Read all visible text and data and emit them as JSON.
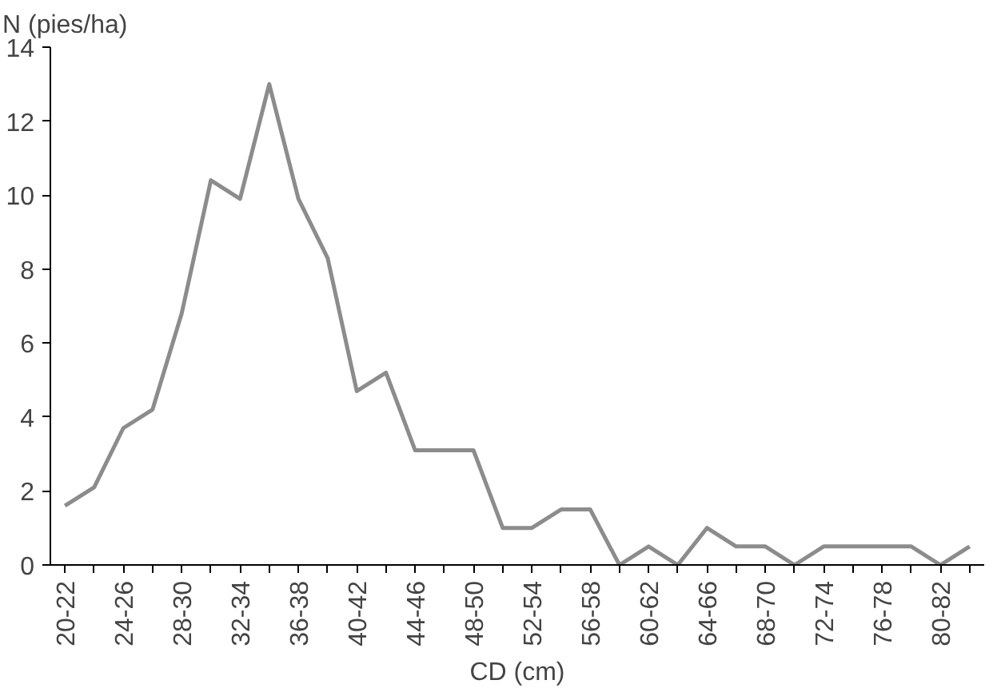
{
  "chart_data": {
    "type": "line",
    "xlabel": "CD (cm)",
    "ylabel": "N (pies/ha)",
    "categories": [
      "20-22",
      null,
      "24-26",
      null,
      "28-30",
      null,
      "32-34",
      null,
      "36-38",
      null,
      "40-42",
      null,
      "44-46",
      null,
      "48-50",
      null,
      "52-54",
      null,
      "56-58",
      null,
      "60-62",
      null,
      "64-66",
      null,
      "68-70",
      null,
      "72-74",
      null,
      "76-78",
      null,
      "80-82",
      null
    ],
    "series": [
      {
        "color": "#8c8c8c",
        "values": [
          1.6,
          2.1,
          3.7,
          4.2,
          6.8,
          10.4,
          9.9,
          13,
          9.9,
          8.3,
          4.7,
          5.2,
          3.1,
          3.1,
          3.1,
          1.0,
          1.0,
          1.5,
          1.5,
          0,
          0.5,
          0,
          1.0,
          0.5,
          0.5,
          0,
          0.5,
          0.5,
          0.5,
          0.5,
          0,
          0.5
        ]
      }
    ],
    "ylim": [
      0,
      14
    ],
    "yticks": [
      0,
      2,
      4,
      6,
      8,
      10,
      12,
      14
    ],
    "grid": false,
    "marker": "none",
    "line_style": "solid"
  }
}
